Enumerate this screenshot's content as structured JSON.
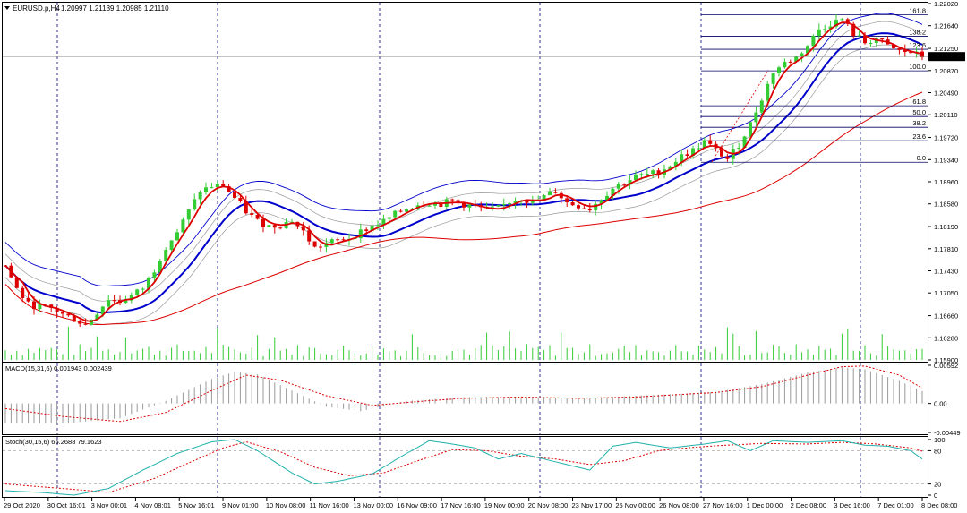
{
  "chart_data": {
    "type": "candlestick",
    "main": {
      "title": "EURUSD.p,H4",
      "ohlc_header": "1.20997 1.21139 1.20985 1.21110",
      "current_price": "1.21110",
      "yticks": [
        "1.22020",
        "1.21640",
        "1.21250",
        "1.20870",
        "1.20490",
        "1.20110",
        "1.19720",
        "1.19340",
        "1.18960",
        "1.18580",
        "1.18190",
        "1.17810",
        "1.17430",
        "1.17050",
        "1.16660",
        "1.16280",
        "1.15900"
      ],
      "ylim": [
        1.159,
        1.2202
      ],
      "fib_levels": [
        {
          "label": "161.8",
          "price": 1.2183
        },
        {
          "label": "138.2",
          "price": 1.2146
        },
        {
          "label": "123.6",
          "price": 1.21235
        },
        {
          "label": "100.0",
          "price": 1.20865
        },
        {
          "label": "61.8",
          "price": 1.20265
        },
        {
          "label": "50.0",
          "price": 1.2008
        },
        {
          "label": "38.2",
          "price": 1.19895
        },
        {
          "label": "23.6",
          "price": 1.19665
        },
        {
          "label": "0.0",
          "price": 1.19295
        }
      ],
      "price_path": [
        [
          0,
          1.1752
        ],
        [
          2,
          1.1712
        ],
        [
          4,
          1.1685
        ],
        [
          6,
          1.1682
        ],
        [
          8,
          1.1678
        ],
        [
          10,
          1.1668
        ],
        [
          12,
          1.166
        ],
        [
          14,
          1.165
        ],
        [
          16,
          1.1672
        ],
        [
          18,
          1.1695
        ],
        [
          20,
          1.169
        ],
        [
          22,
          1.17
        ],
        [
          24,
          1.1713
        ],
        [
          26,
          1.1745
        ],
        [
          28,
          1.1785
        ],
        [
          30,
          1.181
        ],
        [
          32,
          1.1845
        ],
        [
          34,
          1.188
        ],
        [
          36,
          1.1888
        ],
        [
          38,
          1.189
        ],
        [
          40,
          1.1868
        ],
        [
          42,
          1.1845
        ],
        [
          44,
          1.1828
        ],
        [
          46,
          1.182
        ],
        [
          48,
          1.1822
        ],
        [
          50,
          1.183
        ],
        [
          52,
          1.181
        ],
        [
          54,
          1.1782
        ],
        [
          56,
          1.179
        ],
        [
          58,
          1.1795
        ],
        [
          60,
          1.18
        ],
        [
          62,
          1.181
        ],
        [
          64,
          1.182
        ],
        [
          66,
          1.1828
        ],
        [
          68,
          1.184
        ],
        [
          70,
          1.185
        ],
        [
          72,
          1.1858
        ],
        [
          74,
          1.186
        ],
        [
          76,
          1.1858
        ],
        [
          78,
          1.1863
        ],
        [
          80,
          1.1857
        ],
        [
          82,
          1.1853
        ],
        [
          84,
          1.1848
        ],
        [
          86,
          1.185
        ],
        [
          88,
          1.1862
        ],
        [
          90,
          1.1868
        ],
        [
          92,
          1.186
        ],
        [
          94,
          1.187
        ],
        [
          96,
          1.188
        ],
        [
          98,
          1.186
        ],
        [
          100,
          1.1855
        ],
        [
          102,
          1.185
        ],
        [
          104,
          1.1868
        ],
        [
          106,
          1.1885
        ],
        [
          108,
          1.1895
        ],
        [
          110,
          1.1905
        ],
        [
          112,
          1.1908
        ],
        [
          114,
          1.1913
        ],
        [
          116,
          1.1925
        ],
        [
          118,
          1.194
        ],
        [
          120,
          1.195
        ],
        [
          122,
          1.1965
        ],
        [
          124,
          1.195
        ],
        [
          126,
          1.1935
        ],
        [
          128,
          1.196
        ],
        [
          130,
          1.1995
        ],
        [
          132,
          1.204
        ],
        [
          134,
          1.2085
        ],
        [
          136,
          1.21
        ],
        [
          138,
          1.211
        ],
        [
          140,
          1.213
        ],
        [
          142,
          1.2158
        ],
        [
          144,
          1.2168
        ],
        [
          146,
          1.2175
        ],
        [
          148,
          1.215
        ],
        [
          150,
          1.2135
        ],
        [
          152,
          1.2142
        ],
        [
          154,
          1.2128
        ],
        [
          156,
          1.212
        ],
        [
          158,
          1.2118
        ],
        [
          160,
          1.2111
        ]
      ]
    },
    "macd": {
      "title": "MACD(15,31,6) 0.001943 0.002439",
      "yticks": [
        "0.00592",
        "0.00",
        "-0.00449"
      ],
      "ylim": [
        -0.00449,
        0.00592
      ],
      "histogram_path": [
        [
          0,
          -0.003
        ],
        [
          10,
          -0.0031
        ],
        [
          20,
          -0.0023
        ],
        [
          28,
          0.0004
        ],
        [
          36,
          0.0038
        ],
        [
          40,
          0.0049
        ],
        [
          44,
          0.0045
        ],
        [
          50,
          0.002
        ],
        [
          56,
          -0.0005
        ],
        [
          62,
          -0.0012
        ],
        [
          70,
          0.0004
        ],
        [
          80,
          0.001
        ],
        [
          90,
          0.001
        ],
        [
          100,
          0.0008
        ],
        [
          110,
          0.0012
        ],
        [
          118,
          0.0015
        ],
        [
          124,
          0.0018
        ],
        [
          132,
          0.003
        ],
        [
          140,
          0.0048
        ],
        [
          146,
          0.0056
        ],
        [
          150,
          0.0053
        ],
        [
          156,
          0.0035
        ],
        [
          160,
          0.0019
        ]
      ],
      "signal_path": [
        [
          0,
          -0.0008
        ],
        [
          10,
          -0.002
        ],
        [
          20,
          -0.0028
        ],
        [
          28,
          -0.0014
        ],
        [
          36,
          0.002
        ],
        [
          42,
          0.0044
        ],
        [
          48,
          0.0036
        ],
        [
          56,
          0.0012
        ],
        [
          64,
          -0.0003
        ],
        [
          72,
          0.0003
        ],
        [
          80,
          0.0008
        ],
        [
          90,
          0.001
        ],
        [
          100,
          0.0008
        ],
        [
          110,
          0.001
        ],
        [
          118,
          0.0014
        ],
        [
          124,
          0.0017
        ],
        [
          132,
          0.0026
        ],
        [
          140,
          0.0044
        ],
        [
          146,
          0.0057
        ],
        [
          150,
          0.0058
        ],
        [
          156,
          0.0044
        ],
        [
          160,
          0.0024
        ]
      ]
    },
    "stoch": {
      "title": "Stoch(30,15,6) 65.2688 79.1623",
      "yticks": [
        "100",
        "80",
        "20",
        "0"
      ],
      "ylim": [
        0,
        100
      ],
      "main_path": [
        [
          0,
          8
        ],
        [
          6,
          5
        ],
        [
          12,
          0
        ],
        [
          18,
          12
        ],
        [
          24,
          45
        ],
        [
          30,
          75
        ],
        [
          36,
          96
        ],
        [
          40,
          100
        ],
        [
          44,
          80
        ],
        [
          50,
          40
        ],
        [
          54,
          20
        ],
        [
          58,
          25
        ],
        [
          64,
          38
        ],
        [
          70,
          75
        ],
        [
          74,
          98
        ],
        [
          78,
          92
        ],
        [
          82,
          85
        ],
        [
          86,
          65
        ],
        [
          90,
          75
        ],
        [
          94,
          65
        ],
        [
          98,
          55
        ],
        [
          102,
          45
        ],
        [
          106,
          88
        ],
        [
          110,
          95
        ],
        [
          116,
          85
        ],
        [
          122,
          92
        ],
        [
          126,
          98
        ],
        [
          130,
          80
        ],
        [
          134,
          98
        ],
        [
          140,
          95
        ],
        [
          146,
          98
        ],
        [
          150,
          90
        ],
        [
          154,
          88
        ],
        [
          158,
          80
        ],
        [
          160,
          65
        ]
      ],
      "signal_path": [
        [
          0,
          20
        ],
        [
          10,
          12
        ],
        [
          18,
          5
        ],
        [
          26,
          30
        ],
        [
          32,
          58
        ],
        [
          38,
          85
        ],
        [
          42,
          96
        ],
        [
          48,
          78
        ],
        [
          54,
          50
        ],
        [
          60,
          35
        ],
        [
          66,
          40
        ],
        [
          72,
          62
        ],
        [
          78,
          82
        ],
        [
          84,
          80
        ],
        [
          90,
          70
        ],
        [
          96,
          65
        ],
        [
          102,
          55
        ],
        [
          108,
          62
        ],
        [
          114,
          80
        ],
        [
          120,
          86
        ],
        [
          126,
          90
        ],
        [
          132,
          93
        ],
        [
          140,
          92
        ],
        [
          146,
          95
        ],
        [
          152,
          92
        ],
        [
          158,
          85
        ],
        [
          160,
          79
        ]
      ]
    },
    "xticks": [
      "29 Oct 2020",
      "30 Oct 16:01",
      "3 Nov 00:01",
      "4 Nov 08:01",
      "5 Nov 16:01",
      "9 Nov 01:00",
      "10 Nov 08:00",
      "11 Nov 16:00",
      "13 Nov 00:00",
      "16 Nov 09:00",
      "17 Nov 16:00",
      "19 Nov 00:00",
      "20 Nov 08:00",
      "23 Nov 17:00",
      "25 Nov 00:00",
      "26 Nov 08:00",
      "27 Nov 16:00",
      "1 Dec 00:00",
      "2 Dec 08:00",
      "3 Dec 16:00",
      "7 Dec 01:00",
      "8 Dec 08:00"
    ],
    "colors": {
      "bull": "#33cc33",
      "bear": "#dd0000",
      "ma_fast": "#dd0000",
      "ma_mid": "#0000cc",
      "ma_slow": "#dd0000",
      "band": "#0000cc",
      "inner_band": "#999999",
      "fib": "#000066",
      "grid": "#000080",
      "volume": "#33cc33",
      "macd_hist": "#999999",
      "macd_signal": "#dd0000",
      "stoch_main": "#20b2aa",
      "stoch_signal": "#dd0000"
    }
  }
}
